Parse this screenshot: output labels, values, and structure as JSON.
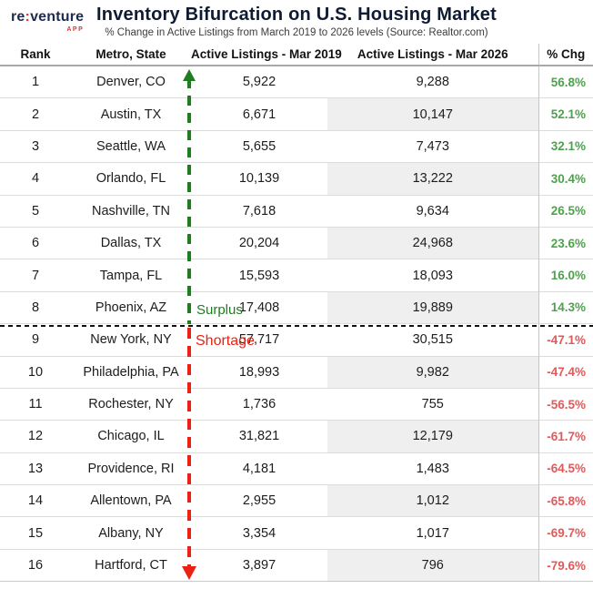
{
  "logo": {
    "re": "re",
    "colon": ":",
    "venture": "venture",
    "app": "APP"
  },
  "header": {
    "title": "Inventory Bifurcation on U.S. Housing Market",
    "subtitle": "% Change in Active Listings from March 2019 to 2026 levels (Source: Realtor.com)"
  },
  "annotations": {
    "surplus": "Surplus",
    "shortage": "Shortage"
  },
  "colors": {
    "surplus_green": "#1e7d1e",
    "shortage_red": "#ec2115",
    "pct_positive": "#4fa14f",
    "pct_negative": "#e05a5a",
    "logo_navy": "#1d2b4f",
    "logo_red": "#e4342b",
    "alt_cell_gray": "#efefef"
  },
  "chart_data": {
    "type": "table",
    "title": "Inventory Bifurcation on U.S. Housing Market",
    "subtitle": "% Change in Active Listings from March 2019 to 2026 levels (Source: Realtor.com)",
    "columns": [
      "Rank",
      "Metro, State",
      "Active Listings - Mar 2019",
      "Active Listings - Mar 2026",
      "% Chg"
    ],
    "rows": [
      {
        "rank": "1",
        "metro": "Denver, CO",
        "mar2019": "5,922",
        "mar2026": "9,288",
        "pct": "56.8%"
      },
      {
        "rank": "2",
        "metro": "Austin, TX",
        "mar2019": "6,671",
        "mar2026": "10,147",
        "pct": "52.1%"
      },
      {
        "rank": "3",
        "metro": "Seattle, WA",
        "mar2019": "5,655",
        "mar2026": "7,473",
        "pct": "32.1%"
      },
      {
        "rank": "4",
        "metro": "Orlando, FL",
        "mar2019": "10,139",
        "mar2026": "13,222",
        "pct": "30.4%"
      },
      {
        "rank": "5",
        "metro": "Nashville, TN",
        "mar2019": "7,618",
        "mar2026": "9,634",
        "pct": "26.5%"
      },
      {
        "rank": "6",
        "metro": "Dallas, TX",
        "mar2019": "20,204",
        "mar2026": "24,968",
        "pct": "23.6%"
      },
      {
        "rank": "7",
        "metro": "Tampa, FL",
        "mar2019": "15,593",
        "mar2026": "18,093",
        "pct": "16.0%"
      },
      {
        "rank": "8",
        "metro": "Phoenix, AZ",
        "mar2019": "17,408",
        "mar2026": "19,889",
        "pct": "14.3%"
      },
      {
        "rank": "9",
        "metro": "New York, NY",
        "mar2019": "57,717",
        "mar2026": "30,515",
        "pct": "-47.1%"
      },
      {
        "rank": "10",
        "metro": "Philadelphia, PA",
        "mar2019": "18,993",
        "mar2026": "9,982",
        "pct": "-47.4%"
      },
      {
        "rank": "11",
        "metro": "Rochester, NY",
        "mar2019": "1,736",
        "mar2026": "755",
        "pct": "-56.5%"
      },
      {
        "rank": "12",
        "metro": "Chicago, IL",
        "mar2019": "31,821",
        "mar2026": "12,179",
        "pct": "-61.7%"
      },
      {
        "rank": "13",
        "metro": "Providence, RI",
        "mar2019": "4,181",
        "mar2026": "1,483",
        "pct": "-64.5%"
      },
      {
        "rank": "14",
        "metro": "Allentown, PA",
        "mar2019": "2,955",
        "mar2026": "1,012",
        "pct": "-65.8%"
      },
      {
        "rank": "15",
        "metro": "Albany, NY",
        "mar2019": "3,354",
        "mar2026": "1,017",
        "pct": "-69.7%"
      },
      {
        "rank": "16",
        "metro": "Hartford, CT",
        "mar2019": "3,897",
        "mar2026": "796",
        "pct": "-79.6%"
      }
    ],
    "annotations": {
      "surplus_section_rows": "1-8",
      "shortage_section_rows": "9-16",
      "legend_position": "vertical dashed arrow at left of Mar 2019 column; green up = Surplus (rows 1-8), red down = Shortage (rows 9-16)"
    }
  }
}
